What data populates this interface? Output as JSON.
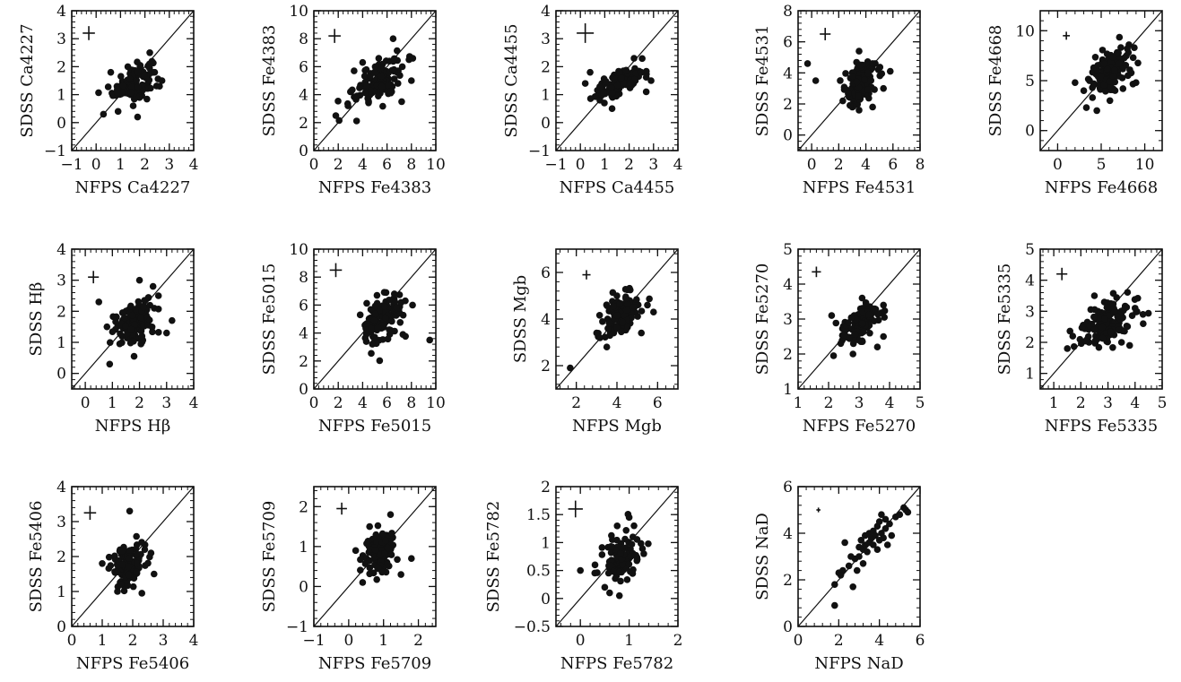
{
  "chart_data": [
    {
      "type": "scatter",
      "xlabel": "NFPS Ca4227",
      "ylabel": "SDSS Ca4227",
      "xlim": [
        -1,
        4
      ],
      "ylim": [
        -1,
        4
      ],
      "xticks": [
        -1,
        0,
        1,
        2,
        3,
        4
      ],
      "xtick_labels": [
        "−1",
        "0",
        "1",
        "2",
        "3",
        "4"
      ],
      "yticks": [
        -1,
        0,
        1,
        2,
        3,
        4
      ],
      "ytick_labels": [
        "−1",
        "0",
        "1",
        "2",
        "3",
        "4"
      ],
      "error_cross": {
        "x": -0.3,
        "y": 3.2,
        "xerr": 0.25,
        "yerr": 0.25
      },
      "n_points": 120,
      "center": [
        1.5,
        1.45
      ],
      "spread": [
        0.4,
        0.3
      ],
      "points": [
        [
          0.3,
          0.3
        ],
        [
          2.2,
          2.5
        ],
        [
          2.6,
          1.3
        ],
        [
          0.9,
          0.4
        ],
        [
          1.7,
          0.2
        ],
        [
          2.4,
          1.8
        ],
        [
          0.6,
          1.8
        ],
        [
          1.3,
          2.0
        ],
        [
          2.7,
          1.5
        ]
      ]
    },
    {
      "type": "scatter",
      "xlabel": "NFPS Fe4383",
      "ylabel": "SDSS Fe4383",
      "xlim": [
        0,
        10
      ],
      "ylim": [
        0,
        10
      ],
      "xticks": [
        0,
        2,
        4,
        6,
        8,
        10
      ],
      "xtick_labels": [
        "0",
        "2",
        "4",
        "6",
        "8",
        "10"
      ],
      "yticks": [
        0,
        2,
        4,
        6,
        8,
        10
      ],
      "ytick_labels": [
        "0",
        "2",
        "4",
        "6",
        "8",
        "10"
      ],
      "error_cross": {
        "x": 1.7,
        "y": 8.2,
        "xerr": 0.5,
        "yerr": 0.5
      },
      "n_points": 120,
      "center": [
        5.3,
        5.0
      ],
      "spread": [
        1.0,
        0.75
      ],
      "points": [
        [
          1.8,
          2.5
        ],
        [
          8.0,
          5.0
        ],
        [
          7.8,
          6.5
        ],
        [
          3.3,
          5.7
        ],
        [
          6.5,
          8.0
        ],
        [
          3.0,
          4.2
        ],
        [
          7.2,
          3.5
        ],
        [
          2.8,
          3.2
        ],
        [
          4.0,
          6.3
        ]
      ]
    },
    {
      "type": "scatter",
      "xlabel": "NFPS Ca4455",
      "ylabel": "SDSS Ca4455",
      "xlim": [
        -1,
        4
      ],
      "ylim": [
        -1,
        4
      ],
      "xticks": [
        -1,
        0,
        1,
        2,
        3,
        4
      ],
      "xtick_labels": [
        "−1",
        "0",
        "1",
        "2",
        "3",
        "4"
      ],
      "yticks": [
        -1,
        0,
        1,
        2,
        3,
        4
      ],
      "ytick_labels": [
        "−1",
        "0",
        "1",
        "2",
        "3",
        "4"
      ],
      "error_cross": {
        "x": 0.2,
        "y": 3.2,
        "xerr": 0.35,
        "yerr": 0.35
      },
      "n_points": 120,
      "center": [
        1.6,
        1.4
      ],
      "spread": [
        0.5,
        0.22
      ],
      "points": [
        [
          0.2,
          1.4
        ],
        [
          2.2,
          2.3
        ],
        [
          0.8,
          0.8
        ],
        [
          1.3,
          0.5
        ],
        [
          2.7,
          1.1
        ],
        [
          2.5,
          1.8
        ],
        [
          0.4,
          1.8
        ],
        [
          2.9,
          1.5
        ]
      ]
    },
    {
      "type": "scatter",
      "xlabel": "NFPS Fe4531",
      "ylabel": "SDSS Fe4531",
      "xlim": [
        -1,
        8
      ],
      "ylim": [
        -1,
        8
      ],
      "xticks": [
        0,
        2,
        4,
        6,
        8
      ],
      "xtick_labels": [
        "0",
        "2",
        "4",
        "6",
        "8"
      ],
      "yticks": [
        0,
        2,
        4,
        6,
        8
      ],
      "ytick_labels": [
        "0",
        "2",
        "4",
        "6",
        "8"
      ],
      "error_cross": {
        "x": 1.0,
        "y": 6.5,
        "xerr": 0.4,
        "yerr": 0.4
      },
      "n_points": 120,
      "center": [
        3.5,
        3.3
      ],
      "spread": [
        0.6,
        0.7
      ],
      "points": [
        [
          -0.3,
          4.6
        ],
        [
          0.3,
          3.5
        ],
        [
          5.8,
          4.1
        ],
        [
          3.5,
          5.4
        ],
        [
          4.5,
          4.6
        ],
        [
          3.5,
          1.6
        ],
        [
          2.3,
          2.2
        ],
        [
          4.5,
          1.8
        ],
        [
          5.3,
          3.0
        ]
      ]
    },
    {
      "type": "scatter",
      "xlabel": "NFPS Fe4668",
      "ylabel": "SDSS Fe4668",
      "xlim": [
        -2,
        12
      ],
      "ylim": [
        -2,
        12
      ],
      "xticks": [
        0,
        5,
        10
      ],
      "xtick_labels": [
        "0",
        "5",
        "10"
      ],
      "yticks": [
        0,
        5,
        10
      ],
      "ytick_labels": [
        "0",
        "5",
        "10"
      ],
      "error_cross": {
        "x": 1.0,
        "y": 9.5,
        "xerr": 0.4,
        "yerr": 0.4
      },
      "n_points": 130,
      "center": [
        6.0,
        6.1
      ],
      "spread": [
        1.1,
        1.1
      ],
      "points": [
        [
          2.0,
          4.8
        ],
        [
          3.3,
          2.3
        ],
        [
          4.5,
          2.0
        ],
        [
          9.0,
          4.8
        ],
        [
          8.8,
          8.3
        ],
        [
          8.0,
          8.2
        ],
        [
          3.0,
          4.0
        ],
        [
          4.0,
          3.3
        ],
        [
          6.0,
          3.0
        ],
        [
          7.5,
          4.2
        ]
      ]
    },
    {
      "type": "scatter",
      "xlabel": "NFPS Hβ",
      "ylabel": "SDSS Hβ",
      "xlim": [
        -0.5,
        4
      ],
      "ylim": [
        -0.5,
        4
      ],
      "xticks": [
        0,
        1,
        2,
        3,
        4
      ],
      "xtick_labels": [
        "0",
        "1",
        "2",
        "3",
        "4"
      ],
      "yticks": [
        0,
        1,
        2,
        3,
        4
      ],
      "ytick_labels": [
        "0",
        "1",
        "2",
        "3",
        "4"
      ],
      "error_cross": {
        "x": 0.3,
        "y": 3.1,
        "xerr": 0.2,
        "yerr": 0.2
      },
      "n_points": 130,
      "center": [
        1.75,
        1.65
      ],
      "spread": [
        0.38,
        0.35
      ],
      "points": [
        [
          0.5,
          2.3
        ],
        [
          0.9,
          0.3
        ],
        [
          1.8,
          0.55
        ],
        [
          3.2,
          1.7
        ],
        [
          2.5,
          2.8
        ],
        [
          2.0,
          3.0
        ],
        [
          0.8,
          1.5
        ],
        [
          2.7,
          2.5
        ],
        [
          3.0,
          1.3
        ]
      ]
    },
    {
      "type": "scatter",
      "xlabel": "NFPS Fe5015",
      "ylabel": "SDSS Fe5015",
      "xlim": [
        0,
        10
      ],
      "ylim": [
        0,
        10
      ],
      "xticks": [
        0,
        2,
        4,
        6,
        8,
        10
      ],
      "xtick_labels": [
        "0",
        "2",
        "4",
        "6",
        "8",
        "10"
      ],
      "yticks": [
        0,
        2,
        4,
        6,
        8,
        10
      ],
      "ytick_labels": [
        "0",
        "2",
        "4",
        "6",
        "8",
        "10"
      ],
      "error_cross": {
        "x": 1.8,
        "y": 8.5,
        "xerr": 0.5,
        "yerr": 0.5
      },
      "n_points": 130,
      "center": [
        5.5,
        5.0
      ],
      "spread": [
        0.8,
        0.7
      ],
      "points": [
        [
          9.5,
          3.5
        ],
        [
          4.8,
          3.2
        ],
        [
          6.6,
          6.8
        ],
        [
          7.5,
          6.3
        ],
        [
          3.8,
          5.3
        ],
        [
          7.3,
          3.9
        ]
      ]
    },
    {
      "type": "scatter",
      "xlabel": "NFPS Mgb",
      "ylabel": "SDSS Mgb",
      "xlim": [
        1,
        7
      ],
      "ylim": [
        1,
        7
      ],
      "xticks": [
        2,
        4,
        6
      ],
      "xtick_labels": [
        "2",
        "4",
        "6"
      ],
      "yticks": [
        2,
        4,
        6
      ],
      "ytick_labels": [
        "2",
        "4",
        "6"
      ],
      "error_cross": {
        "x": 2.5,
        "y": 5.9,
        "xerr": 0.2,
        "yerr": 0.2
      },
      "n_points": 120,
      "center": [
        4.3,
        4.2
      ],
      "spread": [
        0.45,
        0.45
      ],
      "points": [
        [
          1.7,
          1.9
        ],
        [
          3.0,
          3.4
        ],
        [
          3.5,
          2.8
        ],
        [
          4.0,
          5.0
        ],
        [
          5.5,
          4.6
        ],
        [
          5.2,
          3.4
        ],
        [
          5.8,
          4.3
        ]
      ]
    },
    {
      "type": "scatter",
      "xlabel": "NFPS Fe5270",
      "ylabel": "SDSS Fe5270",
      "xlim": [
        1,
        5
      ],
      "ylim": [
        1,
        5
      ],
      "xticks": [
        1,
        2,
        3,
        4,
        5
      ],
      "xtick_labels": [
        "1",
        "2",
        "3",
        "4",
        "5"
      ],
      "yticks": [
        1,
        2,
        3,
        4,
        5
      ],
      "ytick_labels": [
        "1",
        "2",
        "3",
        "4",
        "5"
      ],
      "error_cross": {
        "x": 1.6,
        "y": 4.35,
        "xerr": 0.15,
        "yerr": 0.15
      },
      "n_points": 110,
      "center": [
        3.0,
        2.85
      ],
      "spread": [
        0.3,
        0.3
      ],
      "points": [
        [
          2.1,
          3.1
        ],
        [
          3.8,
          3.4
        ],
        [
          3.8,
          2.5
        ],
        [
          2.8,
          2.0
        ],
        [
          3.1,
          3.6
        ],
        [
          2.4,
          2.3
        ],
        [
          3.6,
          2.2
        ]
      ]
    },
    {
      "type": "scatter",
      "xlabel": "NFPS Fe5335",
      "ylabel": "SDSS Fe5335",
      "xlim": [
        0.5,
        5
      ],
      "ylim": [
        0.5,
        5
      ],
      "xticks": [
        1,
        2,
        3,
        4,
        5
      ],
      "xtick_labels": [
        "1",
        "2",
        "3",
        "4",
        "5"
      ],
      "yticks": [
        1,
        2,
        3,
        4,
        5
      ],
      "ytick_labels": [
        "1",
        "2",
        "3",
        "4",
        "5"
      ],
      "error_cross": {
        "x": 1.3,
        "y": 4.2,
        "xerr": 0.2,
        "yerr": 0.2
      },
      "n_points": 140,
      "center": [
        3.0,
        2.65
      ],
      "spread": [
        0.45,
        0.32
      ],
      "points": [
        [
          1.5,
          1.8
        ],
        [
          1.7,
          2.2
        ],
        [
          4.3,
          2.6
        ],
        [
          4.0,
          3.1
        ],
        [
          2.5,
          3.5
        ],
        [
          3.5,
          2.0
        ],
        [
          3.8,
          1.9
        ]
      ]
    },
    {
      "type": "scatter",
      "xlabel": "NFPS Fe5406",
      "ylabel": "SDSS Fe5406",
      "xlim": [
        0,
        4
      ],
      "ylim": [
        0,
        4
      ],
      "xticks": [
        0,
        1,
        2,
        3,
        4
      ],
      "xtick_labels": [
        "0",
        "1",
        "2",
        "3",
        "4"
      ],
      "yticks": [
        0,
        1,
        2,
        3,
        4
      ],
      "ytick_labels": [
        "0",
        "1",
        "2",
        "3",
        "4"
      ],
      "error_cross": {
        "x": 0.6,
        "y": 3.25,
        "xerr": 0.2,
        "yerr": 0.2
      },
      "n_points": 130,
      "center": [
        1.85,
        1.7
      ],
      "spread": [
        0.25,
        0.3
      ],
      "points": [
        [
          1.9,
          3.3
        ],
        [
          1.0,
          1.8
        ],
        [
          2.6,
          2.1
        ],
        [
          1.5,
          1.0
        ],
        [
          2.3,
          0.95
        ],
        [
          2.7,
          1.5
        ]
      ]
    },
    {
      "type": "scatter",
      "xlabel": "NFPS Fe5709",
      "ylabel": "SDSS Fe5709",
      "xlim": [
        -1,
        2.5
      ],
      "ylim": [
        -1,
        2.5
      ],
      "xticks": [
        -1,
        0,
        1,
        2
      ],
      "xtick_labels": [
        "−1",
        "0",
        "1",
        "2"
      ],
      "yticks": [
        -1,
        0,
        1,
        2
      ],
      "ytick_labels": [
        "−1",
        "0",
        "1",
        "2"
      ],
      "error_cross": {
        "x": -0.2,
        "y": 1.95,
        "xerr": 0.15,
        "yerr": 0.15
      },
      "n_points": 130,
      "center": [
        0.9,
        0.85
      ],
      "spread": [
        0.22,
        0.25
      ],
      "points": [
        [
          0.2,
          0.9
        ],
        [
          0.4,
          0.1
        ],
        [
          1.8,
          0.7
        ],
        [
          1.2,
          1.8
        ],
        [
          0.6,
          1.5
        ],
        [
          1.5,
          0.3
        ]
      ]
    },
    {
      "type": "scatter",
      "xlabel": "NFPS Fe5782",
      "ylabel": "SDSS Fe5782",
      "xlim": [
        -0.5,
        2
      ],
      "ylim": [
        -0.5,
        2
      ],
      "xticks": [
        0,
        1,
        2
      ],
      "xtick_labels": [
        "0",
        "1",
        "2"
      ],
      "yticks": [
        -0.5,
        0,
        0.5,
        1,
        1.5,
        2
      ],
      "ytick_labels": [
        "−0.5",
        "0",
        "0.5",
        "1",
        "1.5",
        "2"
      ],
      "error_cross": {
        "x": -0.1,
        "y": 1.6,
        "xerr": 0.15,
        "yerr": 0.15
      },
      "n_points": 100,
      "center": [
        0.85,
        0.8
      ],
      "spread": [
        0.18,
        0.2
      ],
      "points": [
        [
          0.0,
          0.5
        ],
        [
          0.5,
          0.2
        ],
        [
          0.6,
          0.1
        ],
        [
          0.8,
          0.05
        ],
        [
          1.1,
          1.3
        ],
        [
          1.0,
          1.45
        ],
        [
          1.3,
          0.8
        ],
        [
          0.3,
          0.6
        ]
      ]
    },
    {
      "type": "scatter",
      "xlabel": "NFPS NaD",
      "ylabel": "SDSS NaD",
      "xlim": [
        0,
        6
      ],
      "ylim": [
        0,
        6
      ],
      "xticks": [
        0,
        2,
        4,
        6
      ],
      "xtick_labels": [
        "0",
        "2",
        "4",
        "6"
      ],
      "yticks": [
        0,
        2,
        4,
        6
      ],
      "ytick_labels": [
        "0",
        "2",
        "4",
        "6"
      ],
      "error_cross": {
        "x": 1.0,
        "y": 5.0,
        "xerr": 0.1,
        "yerr": 0.1
      },
      "n_points": 0,
      "center": [
        3.5,
        3.5
      ],
      "spread": [
        0,
        0
      ],
      "points": [
        [
          1.8,
          0.9
        ],
        [
          1.8,
          1.8
        ],
        [
          2.0,
          2.3
        ],
        [
          2.2,
          2.4
        ],
        [
          2.1,
          2.2
        ],
        [
          2.3,
          3.6
        ],
        [
          2.5,
          2.6
        ],
        [
          2.7,
          1.7
        ],
        [
          2.8,
          2.9
        ],
        [
          2.6,
          3.0
        ],
        [
          3.0,
          3.0
        ],
        [
          3.0,
          3.4
        ],
        [
          3.1,
          3.7
        ],
        [
          3.2,
          3.3
        ],
        [
          3.3,
          3.5
        ],
        [
          3.3,
          3.9
        ],
        [
          3.4,
          3.2
        ],
        [
          3.5,
          3.6
        ],
        [
          3.5,
          4.0
        ],
        [
          3.6,
          3.8
        ],
        [
          3.7,
          4.1
        ],
        [
          3.7,
          3.5
        ],
        [
          3.8,
          3.9
        ],
        [
          3.9,
          4.3
        ],
        [
          4.0,
          3.7
        ],
        [
          4.0,
          4.5
        ],
        [
          4.1,
          4.0
        ],
        [
          4.2,
          3.8
        ],
        [
          4.3,
          4.2
        ],
        [
          4.3,
          4.6
        ],
        [
          4.4,
          3.5
        ],
        [
          4.5,
          4.4
        ],
        [
          4.6,
          3.9
        ],
        [
          4.8,
          4.7
        ],
        [
          5.0,
          4.8
        ],
        [
          5.2,
          5.1
        ],
        [
          5.3,
          5.0
        ],
        [
          5.4,
          4.9
        ],
        [
          3.2,
          2.7
        ],
        [
          2.9,
          2.4
        ],
        [
          4.1,
          4.8
        ],
        [
          3.9,
          3.3
        ]
      ]
    }
  ]
}
